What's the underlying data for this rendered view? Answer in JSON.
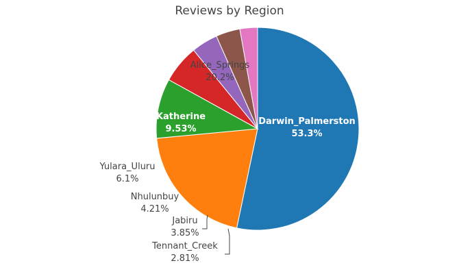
{
  "chart_data": {
    "type": "pie",
    "title": "Reviews by Region",
    "categories": [
      "Darwin_Palmerston",
      "Alice_Springs",
      "Katherine",
      "Yulara_Uluru",
      "Nhulunbuy",
      "Jabiru",
      "Tennant_Creek"
    ],
    "values": [
      53.3,
      20.2,
      9.53,
      6.1,
      4.21,
      3.85,
      2.81
    ],
    "percent_labels": [
      "53.3%",
      "20.2%",
      "9.53%",
      "6.1%",
      "4.21%",
      "3.85%",
      "2.81%"
    ],
    "colors": [
      "#1f77b4",
      "#ff7f0e",
      "#2ca02c",
      "#d62728",
      "#9467bd",
      "#8c564b",
      "#e377c2"
    ],
    "direction": "clockwise",
    "start": "top",
    "legend": "none"
  }
}
